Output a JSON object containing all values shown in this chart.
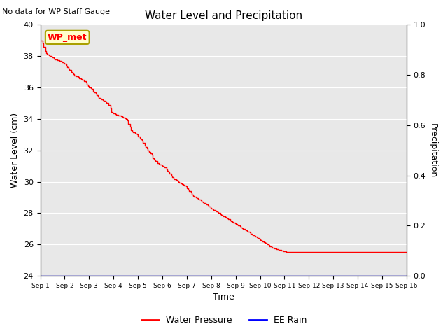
{
  "title": "Water Level and Precipitation",
  "top_left_text": "No data for WP Staff Gauge",
  "xlabel": "Time",
  "ylabel_left": "Water Level (cm)",
  "ylabel_right": "Precipitation",
  "legend_entries": [
    "Water Pressure",
    "EE Rain"
  ],
  "legend_colors": [
    "red",
    "blue"
  ],
  "wp_met_label": "WP_met",
  "wp_met_bg": "#ffffcc",
  "wp_met_border": "#aaa000",
  "ylim_left": [
    24,
    40
  ],
  "ylim_right": [
    0.0,
    1.0
  ],
  "yticks_left": [
    24,
    26,
    28,
    30,
    32,
    34,
    36,
    38,
    40
  ],
  "yticks_right": [
    0.0,
    0.2,
    0.4,
    0.6,
    0.8,
    1.0
  ],
  "xtick_labels": [
    "Sep 1",
    "Sep 2",
    "Sep 3",
    "Sep 4",
    "Sep 5",
    "Sep 6",
    "Sep 7",
    "Sep 8",
    "Sep 9",
    "Sep 10",
    "Sep 11",
    "Sep 12",
    "Sep 13",
    "Sep 14",
    "Sep 15",
    "Sep 16"
  ],
  "bg_color": "#e8e8e8",
  "water_pressure_color": "red",
  "ee_rain_color": "blue",
  "water_pressure_x": [
    0.0,
    0.07,
    0.1,
    0.13,
    0.2,
    0.23,
    0.27,
    0.3,
    0.37,
    0.4,
    0.47,
    0.5,
    0.57,
    0.6,
    0.7,
    0.8,
    0.87,
    0.9,
    0.97,
    1.0,
    1.07,
    1.1,
    1.17,
    1.2,
    1.27,
    1.3,
    1.37,
    1.4,
    1.47,
    1.57,
    1.6,
    1.67,
    1.7,
    1.8,
    1.87,
    1.9,
    1.97,
    2.0,
    2.07,
    2.1,
    2.17,
    2.2,
    2.27,
    2.3,
    2.37,
    2.4,
    2.47,
    2.5,
    2.57,
    2.6,
    2.67,
    2.7,
    2.8,
    2.87,
    2.9,
    2.97,
    3.0,
    3.07,
    3.1,
    3.17,
    3.2,
    3.27,
    3.3,
    3.37,
    3.4,
    3.47,
    3.5,
    3.57,
    3.6,
    3.67,
    3.7,
    3.77,
    3.8,
    3.87,
    3.9,
    3.97,
    4.0,
    4.07,
    4.1,
    4.17,
    4.2,
    4.27,
    4.3,
    4.37,
    4.4,
    4.47,
    4.5,
    4.57,
    4.6,
    4.67,
    4.7,
    4.8,
    4.87,
    4.9,
    4.97,
    5.0,
    5.07,
    5.1,
    5.17,
    5.2,
    5.27,
    5.3,
    5.37,
    5.4,
    5.47,
    5.5,
    5.57,
    5.6,
    5.67,
    5.7,
    5.77,
    5.8,
    5.87,
    5.9,
    5.97,
    6.0,
    6.07,
    6.1,
    6.17,
    6.2,
    6.27,
    6.3,
    6.37,
    6.4,
    6.47,
    6.5,
    6.57,
    6.6,
    6.67,
    6.7,
    6.77,
    6.8,
    6.87,
    6.9,
    6.97,
    7.0,
    7.07,
    7.1,
    7.17,
    7.2,
    7.27,
    7.3,
    7.37,
    7.4,
    7.47,
    7.5,
    7.57,
    7.6,
    7.67,
    7.7,
    7.77,
    7.8,
    7.87,
    7.9,
    7.97,
    8.0,
    8.07,
    8.1,
    8.17,
    8.2,
    8.27,
    8.3,
    8.37,
    8.4,
    8.47,
    8.5,
    8.57,
    8.6,
    8.67,
    8.7,
    8.77,
    8.8,
    8.87,
    8.9,
    8.97,
    9.0,
    9.07,
    9.1,
    9.17,
    9.2,
    9.27,
    9.3,
    9.37,
    9.4,
    9.47,
    9.5,
    9.57,
    9.6,
    9.67,
    9.7,
    9.77,
    9.8,
    9.87,
    9.9,
    9.97,
    10.0,
    10.07,
    10.1,
    10.17,
    10.2,
    10.27,
    10.3,
    10.37,
    10.4,
    10.47,
    10.5,
    10.57,
    10.6,
    10.67,
    10.7,
    10.77,
    10.8,
    10.87,
    10.9,
    10.97,
    11.0,
    11.07,
    11.1,
    11.17,
    11.2,
    11.27,
    11.3,
    11.37,
    11.4,
    11.47,
    11.5,
    11.57,
    11.6,
    11.67,
    11.7,
    11.77,
    11.8,
    11.87,
    11.9,
    11.97,
    12.0,
    12.07,
    12.1,
    12.17,
    12.2,
    12.27,
    12.3,
    12.37,
    12.4,
    12.47,
    12.5,
    12.57,
    12.6,
    12.67,
    12.7,
    12.77,
    12.8,
    12.87,
    12.9,
    12.97,
    13.0,
    13.07,
    13.1,
    13.17,
    13.2,
    13.27,
    13.3,
    13.37,
    13.4,
    13.47,
    13.5,
    13.57,
    13.6,
    13.67,
    13.7,
    13.77,
    13.8,
    13.87,
    13.9,
    13.97,
    14.0,
    14.07,
    14.1,
    14.17,
    14.2,
    14.27,
    14.3,
    14.37,
    14.4,
    14.47,
    14.5,
    14.57,
    14.6,
    14.67,
    14.7,
    14.77,
    14.8,
    14.87,
    14.9,
    14.97,
    15.0
  ],
  "water_pressure_y": [
    39.0,
    39.0,
    38.8,
    38.6,
    38.3,
    38.2,
    38.15,
    38.1,
    38.05,
    38.0,
    37.95,
    37.9,
    37.85,
    37.8,
    37.75,
    37.7,
    37.65,
    37.6,
    37.55,
    37.5,
    37.4,
    37.3,
    37.2,
    37.1,
    37.0,
    36.95,
    36.85,
    36.75,
    36.7,
    36.65,
    36.6,
    36.55,
    36.5,
    36.4,
    36.3,
    36.2,
    36.1,
    36.0,
    35.95,
    35.9,
    35.8,
    35.7,
    35.6,
    35.5,
    35.4,
    35.35,
    35.3,
    35.25,
    35.2,
    35.15,
    35.1,
    35.0,
    34.9,
    34.7,
    34.45,
    34.4,
    34.35,
    34.3,
    34.28,
    34.25,
    34.22,
    34.2,
    34.18,
    34.15,
    34.1,
    34.05,
    34.0,
    33.9,
    33.7,
    33.5,
    33.3,
    33.2,
    33.15,
    33.1,
    33.05,
    33.0,
    32.9,
    32.8,
    32.7,
    32.6,
    32.5,
    32.3,
    32.2,
    32.1,
    32.0,
    31.9,
    31.8,
    31.7,
    31.5,
    31.4,
    31.3,
    31.2,
    31.15,
    31.1,
    31.05,
    31.0,
    30.95,
    30.9,
    30.8,
    30.7,
    30.6,
    30.5,
    30.4,
    30.3,
    30.2,
    30.15,
    30.1,
    30.05,
    30.0,
    29.95,
    29.9,
    29.85,
    29.8,
    29.75,
    29.7,
    29.6,
    29.5,
    29.4,
    29.3,
    29.2,
    29.1,
    29.05,
    29.0,
    28.95,
    28.9,
    28.85,
    28.8,
    28.75,
    28.7,
    28.65,
    28.6,
    28.55,
    28.5,
    28.4,
    28.35,
    28.3,
    28.25,
    28.2,
    28.15,
    28.1,
    28.05,
    28.0,
    27.95,
    27.9,
    27.85,
    27.8,
    27.75,
    27.7,
    27.65,
    27.6,
    27.55,
    27.5,
    27.45,
    27.4,
    27.35,
    27.3,
    27.25,
    27.2,
    27.15,
    27.1,
    27.05,
    27.0,
    26.95,
    26.9,
    26.85,
    26.8,
    26.75,
    26.7,
    26.65,
    26.6,
    26.55,
    26.5,
    26.45,
    26.4,
    26.35,
    26.3,
    26.25,
    26.2,
    26.15,
    26.1,
    26.05,
    26.0,
    25.95,
    25.9,
    25.85,
    25.8,
    25.78,
    25.75,
    25.72,
    25.7,
    25.67,
    25.65,
    25.62,
    25.6,
    25.58,
    25.55,
    25.52,
    25.5,
    25.5,
    25.5,
    25.5,
    25.5,
    25.5,
    25.5,
    25.5,
    25.5,
    25.5,
    25.5,
    25.5,
    25.5,
    25.5,
    25.5,
    25.5,
    25.5,
    25.5,
    25.5,
    25.5,
    25.5,
    25.5,
    25.5,
    25.5,
    25.5,
    25.5,
    25.5,
    25.5,
    25.5,
    25.5,
    25.5,
    25.5,
    25.5,
    25.5,
    25.5,
    25.5,
    25.5,
    25.5,
    25.5,
    25.5,
    25.5,
    25.5,
    25.5,
    25.5,
    25.5,
    25.5,
    25.5,
    25.5,
    25.5,
    25.5,
    25.5,
    25.5,
    25.5,
    25.5,
    25.5,
    25.5,
    25.5,
    25.5,
    25.5,
    25.5,
    25.5,
    25.5,
    25.5,
    25.5,
    25.5,
    25.5,
    25.5,
    25.5,
    25.5,
    25.5,
    25.5,
    25.5,
    25.5,
    25.5,
    25.5,
    25.5,
    25.5,
    25.5,
    25.5,
    25.5,
    25.5,
    25.5,
    25.5,
    25.5,
    25.5,
    25.5,
    25.5,
    25.5,
    25.5,
    25.5,
    25.5,
    25.5,
    25.5,
    25.5,
    25.5,
    25.5,
    25.5,
    25.5,
    25.5
  ]
}
